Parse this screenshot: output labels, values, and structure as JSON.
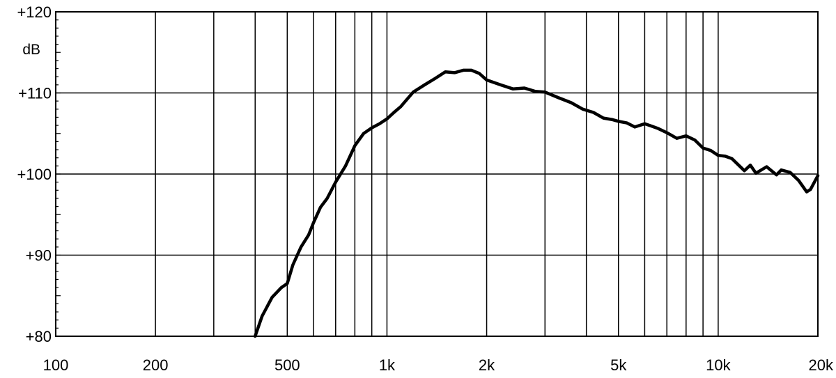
{
  "chart_data": {
    "type": "line",
    "title": "",
    "xlabel": "",
    "ylabel": "dB",
    "x_scale": "log",
    "xlim": [
      100,
      20000
    ],
    "ylim": [
      80,
      120
    ],
    "grid": true,
    "x_major_ticks": [
      {
        "value": 100,
        "label": "100"
      },
      {
        "value": 200,
        "label": "200"
      },
      {
        "value": 500,
        "label": "500"
      },
      {
        "value": 1000,
        "label": "1k"
      },
      {
        "value": 2000,
        "label": "2k"
      },
      {
        "value": 5000,
        "label": "5k"
      },
      {
        "value": 10000,
        "label": "10k"
      },
      {
        "value": 20000,
        "label": "20k"
      }
    ],
    "x_grid_values": [
      200,
      300,
      400,
      500,
      600,
      700,
      800,
      900,
      1000,
      2000,
      3000,
      4000,
      5000,
      6000,
      7000,
      8000,
      9000,
      10000
    ],
    "y_ticks": [
      {
        "value": 120,
        "label": "+120"
      },
      {
        "value": 110,
        "label": "+110"
      },
      {
        "value": 100,
        "label": "+100"
      },
      {
        "value": 90,
        "label": "+90"
      },
      {
        "value": 80,
        "label": "+80"
      }
    ],
    "series": [
      {
        "color": "#000000",
        "x": [
          400,
          420,
          450,
          480,
          500,
          520,
          550,
          580,
          600,
          630,
          660,
          700,
          750,
          800,
          850,
          900,
          950,
          1000,
          1050,
          1100,
          1200,
          1300,
          1400,
          1500,
          1600,
          1700,
          1800,
          1900,
          2000,
          2200,
          2400,
          2600,
          2800,
          3000,
          3300,
          3600,
          3900,
          4200,
          4500,
          4800,
          5000,
          5300,
          5600,
          6000,
          6300,
          6600,
          7000,
          7500,
          8000,
          8500,
          9000,
          9500,
          10000,
          10500,
          11000,
          12000,
          12500,
          13000,
          14000,
          15000,
          15500,
          16500,
          17500,
          18500,
          19000,
          20000
        ],
        "y": [
          80,
          82.5,
          84.8,
          86,
          86.5,
          88.8,
          91,
          92.5,
          94,
          95.9,
          97,
          99,
          101,
          103.5,
          105,
          105.7,
          106.2,
          106.8,
          107.6,
          108.3,
          110.1,
          111,
          111.8,
          112.6,
          112.5,
          112.8,
          112.8,
          112.4,
          111.6,
          111,
          110.5,
          110.6,
          110.2,
          110.1,
          109.4,
          108.8,
          108,
          107.6,
          106.9,
          106.7,
          106.5,
          106.3,
          105.8,
          106.2,
          105.9,
          105.6,
          105.1,
          104.4,
          104.7,
          104.2,
          103.2,
          102.9,
          102.3,
          102.2,
          101.9,
          100.4,
          101.1,
          100.1,
          100.9,
          99.9,
          100.5,
          100.2,
          99.2,
          97.8,
          98.1,
          99.8
        ]
      }
    ]
  }
}
